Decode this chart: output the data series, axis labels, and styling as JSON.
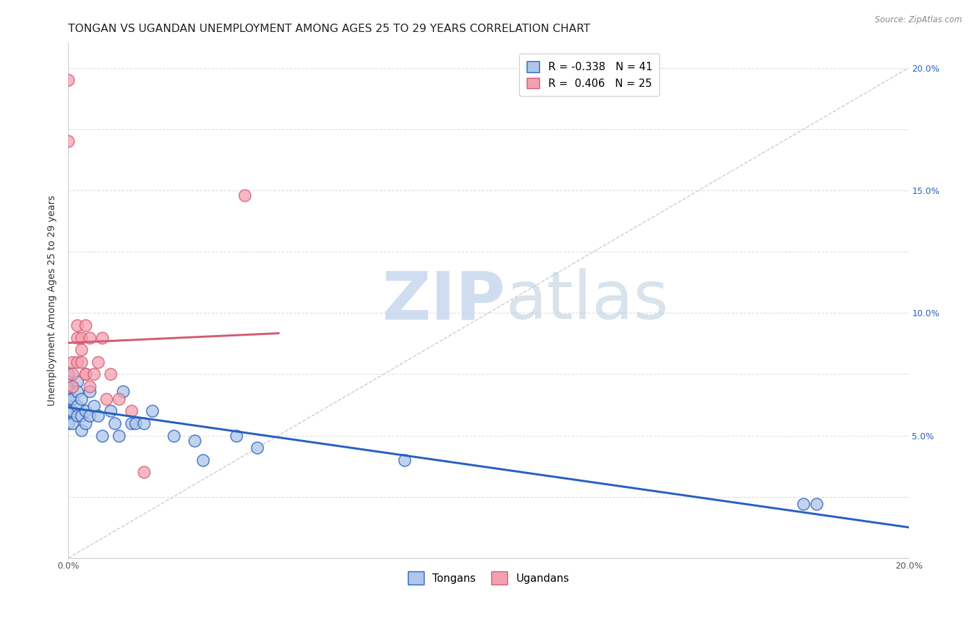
{
  "title": "TONGAN VS UGANDAN UNEMPLOYMENT AMONG AGES 25 TO 29 YEARS CORRELATION CHART",
  "source": "Source: ZipAtlas.com",
  "ylabel": "Unemployment Among Ages 25 to 29 years",
  "xlim": [
    0,
    0.2
  ],
  "ylim": [
    0,
    0.21
  ],
  "tongans_x": [
    0.0,
    0.0,
    0.0,
    0.0,
    0.0,
    0.0,
    0.0,
    0.001,
    0.001,
    0.001,
    0.001,
    0.002,
    0.002,
    0.002,
    0.002,
    0.003,
    0.003,
    0.003,
    0.004,
    0.004,
    0.005,
    0.005,
    0.006,
    0.007,
    0.008,
    0.01,
    0.011,
    0.012,
    0.013,
    0.015,
    0.016,
    0.018,
    0.02,
    0.025,
    0.03,
    0.032,
    0.04,
    0.045,
    0.08,
    0.175,
    0.178
  ],
  "tongans_y": [
    0.075,
    0.072,
    0.068,
    0.065,
    0.062,
    0.06,
    0.055,
    0.07,
    0.065,
    0.06,
    0.055,
    0.072,
    0.068,
    0.062,
    0.058,
    0.065,
    0.058,
    0.052,
    0.06,
    0.055,
    0.068,
    0.058,
    0.062,
    0.058,
    0.05,
    0.06,
    0.055,
    0.05,
    0.068,
    0.055,
    0.055,
    0.055,
    0.06,
    0.05,
    0.048,
    0.04,
    0.05,
    0.045,
    0.04,
    0.022,
    0.022
  ],
  "ugandans_x": [
    0.0,
    0.0,
    0.001,
    0.001,
    0.001,
    0.002,
    0.002,
    0.002,
    0.003,
    0.003,
    0.003,
    0.004,
    0.004,
    0.004,
    0.005,
    0.005,
    0.006,
    0.007,
    0.008,
    0.009,
    0.01,
    0.012,
    0.015,
    0.018,
    0.042
  ],
  "ugandans_y": [
    0.195,
    0.17,
    0.08,
    0.075,
    0.07,
    0.095,
    0.09,
    0.08,
    0.09,
    0.085,
    0.08,
    0.075,
    0.095,
    0.075,
    0.09,
    0.07,
    0.075,
    0.08,
    0.09,
    0.065,
    0.075,
    0.065,
    0.06,
    0.035,
    0.148
  ],
  "tongans_color": "#aec6e8",
  "ugandans_color": "#f4a0b0",
  "tongans_line_color": "#2860c0",
  "ugandans_line_color": "#d45b72",
  "ref_line_color": "#cccccc",
  "legend_R_tongans": "-0.338",
  "legend_N_tongans": "41",
  "legend_R_ugandans": "0.406",
  "legend_N_ugandans": "25",
  "background_color": "#ffffff",
  "title_fontsize": 11.5,
  "axis_label_fontsize": 10,
  "tick_fontsize": 9,
  "legend_fontsize": 11
}
